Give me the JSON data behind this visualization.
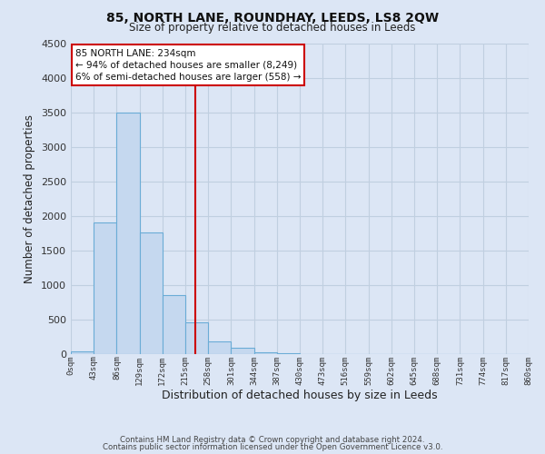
{
  "title": "85, NORTH LANE, ROUNDHAY, LEEDS, LS8 2QW",
  "subtitle": "Size of property relative to detached houses in Leeds",
  "xlabel": "Distribution of detached houses by size in Leeds",
  "ylabel": "Number of detached properties",
  "bin_edges": [
    0,
    43,
    86,
    129,
    172,
    215,
    258,
    301,
    344,
    387,
    430,
    473,
    516,
    559,
    602,
    645,
    688,
    731,
    774,
    817,
    860
  ],
  "bar_heights": [
    40,
    1900,
    3500,
    1760,
    860,
    460,
    185,
    90,
    30,
    10,
    5,
    2,
    0,
    0,
    0,
    0,
    0,
    0,
    0,
    0
  ],
  "bar_color": "#c5d8ef",
  "bar_edge_color": "#6aacd6",
  "property_value": 234,
  "vline_color": "#cc0000",
  "annotation_title": "85 NORTH LANE: 234sqm",
  "annotation_line1": "← 94% of detached houses are smaller (8,249)",
  "annotation_line2": "6% of semi-detached houses are larger (558) →",
  "annotation_box_color": "#ffffff",
  "annotation_box_edge": "#cc0000",
  "ylim": [
    0,
    4500
  ],
  "xlim": [
    0,
    860
  ],
  "background_color": "#dce6f5",
  "grid_color": "#c0cfe0",
  "footer1": "Contains HM Land Registry data © Crown copyright and database right 2024.",
  "footer2": "Contains public sector information licensed under the Open Government Licence v3.0."
}
